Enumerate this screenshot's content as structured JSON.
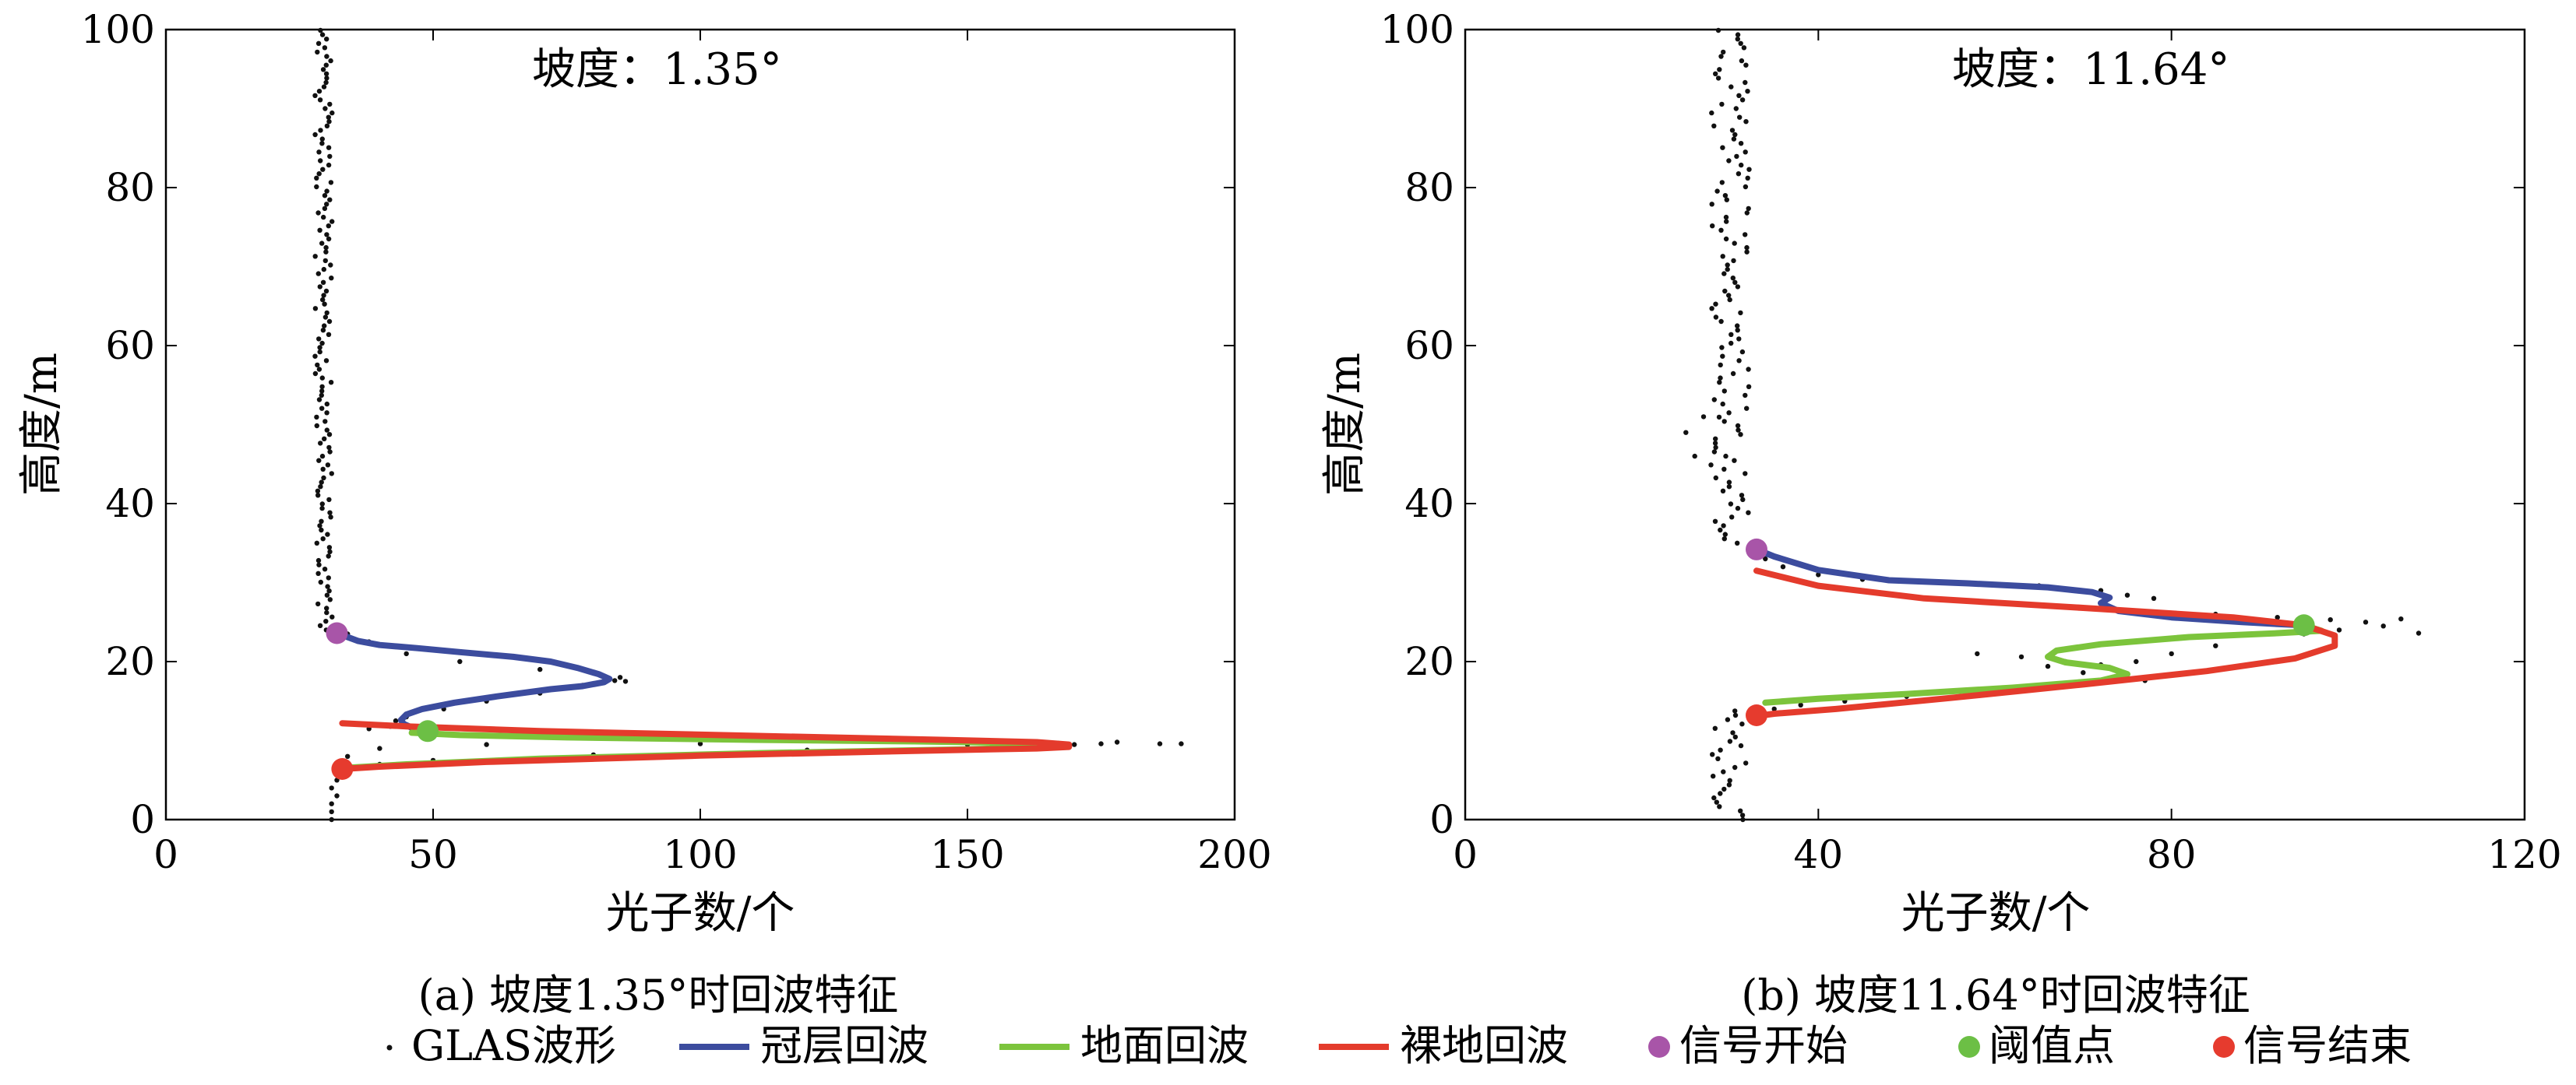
{
  "colors": {
    "waveform": "#111111",
    "canopy": "#3c4c9e",
    "ground": "#7cc43c",
    "bare": "#e43b2c",
    "signal_start": "#a855a8",
    "threshold": "#6cbf45",
    "signal_end": "#e63b2e"
  },
  "legend": {
    "waveform": "GLAS波形",
    "canopy": "冠层回波",
    "ground": "地面回波",
    "bare": "裸地回波",
    "signal_start": "信号开始",
    "threshold": "阈值点",
    "signal_end": "信号结束"
  },
  "chart_data": [
    {
      "type": "line",
      "caption": "(a) 坡度1.35°时回波特征",
      "annotation": "坡度：1.35°",
      "xlabel": "光子数/个",
      "ylabel": "高度/m",
      "xlim": [
        0,
        200
      ],
      "ylim": [
        0,
        100
      ],
      "xticks": [
        0,
        50,
        100,
        150,
        200
      ],
      "yticks": [
        0,
        20,
        40,
        60,
        80,
        100
      ],
      "grid": false,
      "waveform_noise": {
        "x_center": 29.5,
        "x_spread": 1.6,
        "y_range": [
          24,
          100
        ]
      },
      "waveform_points": [
        [
          31,
          0
        ],
        [
          31,
          1
        ],
        [
          31,
          2
        ],
        [
          32,
          3
        ],
        [
          31,
          4
        ],
        [
          32,
          5
        ],
        [
          33,
          6
        ],
        [
          33,
          7
        ],
        [
          34,
          8
        ],
        [
          40,
          9
        ],
        [
          60,
          9.5
        ],
        [
          100,
          9.6
        ],
        [
          150,
          9.5
        ],
        [
          165,
          9.5
        ],
        [
          170,
          9.5
        ],
        [
          175,
          9.6
        ],
        [
          178,
          9.8
        ],
        [
          186,
          9.6
        ],
        [
          190,
          9.6
        ],
        [
          160,
          9.3
        ],
        [
          120,
          8.8
        ],
        [
          80,
          8.2
        ],
        [
          50,
          7.5
        ],
        [
          40,
          7
        ],
        [
          38,
          11.5
        ],
        [
          42,
          11.8
        ],
        [
          43,
          12.5
        ],
        [
          50,
          11.3
        ],
        [
          45,
          13
        ],
        [
          52,
          14
        ],
        [
          60,
          15
        ],
        [
          70,
          16
        ],
        [
          78,
          17
        ],
        [
          84,
          17.6
        ],
        [
          86,
          17.5
        ],
        [
          85,
          18
        ],
        [
          70,
          19
        ],
        [
          55,
          20
        ],
        [
          45,
          21
        ],
        [
          38,
          22.5
        ],
        [
          34,
          23.5
        ],
        [
          32,
          24
        ]
      ],
      "series": [
        {
          "name": "冠层回波",
          "key": "canopy",
          "x": [
            32.5,
            34,
            36,
            40,
            47,
            55,
            65,
            72,
            77,
            81,
            83,
            82,
            78,
            72,
            62,
            54,
            48,
            45,
            44,
            44.5,
            45.5,
            46
          ],
          "y": [
            23.5,
            23.1,
            22.6,
            22.1,
            21.7,
            21.2,
            20.6,
            20.0,
            19.2,
            18.4,
            17.8,
            17.4,
            16.9,
            16.5,
            15.6,
            14.8,
            14.0,
            13.3,
            12.6,
            12.1,
            11.8,
            11.6
          ]
        },
        {
          "name": "地面回波",
          "key": "ground",
          "x": [
            46,
            55,
            75,
            110,
            140,
            160,
            167,
            168,
            165,
            150,
            110,
            70,
            45,
            35,
            32.5
          ],
          "y": [
            11.0,
            10.7,
            10.4,
            10.1,
            9.9,
            9.7,
            9.6,
            9.4,
            9.2,
            8.9,
            8.4,
            7.7,
            7.0,
            6.6,
            6.4
          ]
        },
        {
          "name": "裸地回波",
          "key": "bare",
          "x": [
            33,
            45,
            70,
            110,
            145,
            163,
            169,
            169,
            163,
            140,
            100,
            60,
            40,
            33
          ],
          "y": [
            12.2,
            11.8,
            11.2,
            10.6,
            10.1,
            9.8,
            9.5,
            9.2,
            9.0,
            8.7,
            8.1,
            7.3,
            6.7,
            6.4
          ]
        }
      ],
      "markers": [
        {
          "name": "信号开始",
          "key": "signal_start",
          "x": 32,
          "y": 23.6
        },
        {
          "name": "阈值点",
          "key": "threshold",
          "x": 49,
          "y": 11.2
        },
        {
          "name": "信号结束",
          "key": "signal_end",
          "x": 33,
          "y": 6.4
        }
      ]
    },
    {
      "type": "line",
      "caption": "(b) 坡度11.64°时回波特征",
      "annotation": "坡度：11.64°",
      "xlabel": "光子数/个",
      "ylabel": "高度/m",
      "xlim": [
        0,
        120
      ],
      "ylim": [
        0,
        100
      ],
      "xticks": [
        0,
        40,
        80,
        120
      ],
      "yticks": [
        0,
        20,
        40,
        60,
        80,
        100
      ],
      "grid": false,
      "waveform_noise": {
        "x_center": 30,
        "x_spread": 2.2,
        "y_range": [
          35,
          100
        ],
        "y_range_low": [
          0,
          14
        ]
      },
      "waveform_points": [
        [
          26,
          46
        ],
        [
          25,
          49
        ],
        [
          27,
          51
        ],
        [
          34,
          33
        ],
        [
          36,
          32
        ],
        [
          40,
          31
        ],
        [
          45,
          30.4
        ],
        [
          55,
          30
        ],
        [
          65,
          29.6
        ],
        [
          72,
          29
        ],
        [
          75,
          28.4
        ],
        [
          78,
          28
        ],
        [
          85,
          26
        ],
        [
          92,
          25.6
        ],
        [
          98,
          25.3
        ],
        [
          102,
          25
        ],
        [
          104,
          24.5
        ],
        [
          106,
          25.4
        ],
        [
          108,
          23.6
        ],
        [
          99,
          24
        ],
        [
          95,
          23.5
        ],
        [
          85,
          22
        ],
        [
          80,
          21
        ],
        [
          76,
          20
        ],
        [
          72,
          19.6
        ],
        [
          70,
          18.6
        ],
        [
          74,
          18
        ],
        [
          77,
          17.6
        ],
        [
          72,
          17.4
        ],
        [
          65,
          17
        ],
        [
          58,
          16.4
        ],
        [
          50,
          15.6
        ],
        [
          43,
          15
        ],
        [
          38,
          14.5
        ],
        [
          35,
          14
        ],
        [
          33,
          13.5
        ],
        [
          58,
          21
        ],
        [
          63,
          20.6
        ],
        [
          66,
          19.4
        ],
        [
          68,
          20
        ]
      ],
      "series": [
        {
          "name": "冠层回波",
          "key": "canopy",
          "x": [
            33,
            35,
            40,
            48,
            57,
            66,
            71,
            73,
            72,
            74,
            80,
            88,
            93,
            95
          ],
          "y": [
            34.2,
            33.3,
            31.6,
            30.3,
            29.9,
            29.4,
            28.8,
            28.1,
            27.4,
            26.4,
            25.6,
            25.0,
            24.7,
            24.6
          ]
        },
        {
          "name": "地面回波",
          "key": "ground",
          "x": [
            95,
            97,
            92,
            82,
            72,
            67,
            66,
            68,
            73,
            75,
            72,
            62,
            50,
            40,
            34
          ],
          "y": [
            24.6,
            23.9,
            23.6,
            23.1,
            22.2,
            21.4,
            20.6,
            19.9,
            19.2,
            18.4,
            17.6,
            16.7,
            15.9,
            15.3,
            14.8
          ]
        },
        {
          "name": "裸地回波",
          "key": "bare",
          "x": [
            33,
            40,
            52,
            70,
            87,
            95,
            98.5,
            98.5,
            94,
            84,
            70,
            55,
            42,
            35,
            33
          ],
          "y": [
            31.5,
            29.6,
            28.0,
            26.8,
            25.6,
            24.6,
            23.3,
            22.0,
            20.4,
            18.8,
            17.1,
            15.4,
            14.0,
            13.4,
            13.1
          ]
        }
      ],
      "markers": [
        {
          "name": "信号开始",
          "key": "signal_start",
          "x": 33,
          "y": 34.2
        },
        {
          "name": "阈值点",
          "key": "threshold",
          "x": 95,
          "y": 24.6
        },
        {
          "name": "信号结束",
          "key": "signal_end",
          "x": 33,
          "y": 13.2
        }
      ]
    }
  ]
}
